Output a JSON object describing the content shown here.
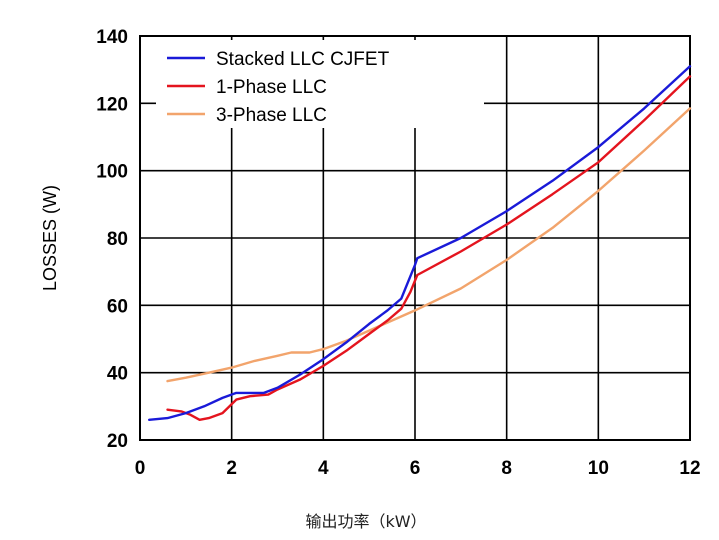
{
  "chart_data": {
    "type": "line",
    "title": "",
    "xlabel": "输出功率（kW）",
    "ylabel": "LOSSES (W)",
    "xlim": [
      0,
      12
    ],
    "ylim": [
      20,
      140
    ],
    "xticks": [
      "0",
      "2",
      "4",
      "6",
      "8",
      "10",
      "12"
    ],
    "yticks": [
      "20",
      "40",
      "60",
      "80",
      "100",
      "120",
      "140"
    ],
    "grid": true,
    "legend_position": "top-left",
    "series": [
      {
        "name": "Stacked LLC CJFET",
        "color": "#1a1ad8",
        "x": [
          0.2,
          0.6,
          1.0,
          1.4,
          1.8,
          2.1,
          2.4,
          2.7,
          3.0,
          3.5,
          4.0,
          4.5,
          5.0,
          5.4,
          5.7,
          5.85,
          6.0,
          6.05,
          7.0,
          8.0,
          9.0,
          10.0,
          11.0,
          12.0
        ],
        "values": [
          26,
          26.5,
          28,
          30,
          32.5,
          34,
          34,
          34,
          35.5,
          39.5,
          44,
          49,
          54.5,
          58.5,
          62,
          67,
          72,
          74,
          80,
          88,
          97,
          107,
          118.5,
          131
        ]
      },
      {
        "name": "1-Phase LLC",
        "color": "#e4141e",
        "x": [
          0.6,
          0.9,
          1.1,
          1.3,
          1.5,
          1.8,
          2.1,
          2.4,
          2.8,
          3.0,
          3.5,
          4.0,
          4.5,
          5.0,
          5.4,
          5.7,
          5.9,
          6.05,
          7.0,
          8.0,
          9.0,
          10.0,
          11.0,
          12.0
        ],
        "values": [
          29,
          28.5,
          27.5,
          26,
          26.5,
          28,
          32,
          33,
          33.5,
          35,
          38,
          42,
          46.5,
          51.5,
          55.5,
          59,
          64,
          69,
          76,
          84,
          93,
          102.5,
          115,
          128
        ]
      },
      {
        "name": "3-Phase LLC",
        "color": "#f2a46c",
        "x": [
          0.6,
          1.0,
          1.5,
          2.0,
          2.5,
          3.0,
          3.3,
          3.7,
          4.0,
          4.5,
          5.0,
          5.5,
          6.0,
          7.0,
          8.0,
          9.0,
          10.0,
          11.0,
          12.0
        ],
        "values": [
          37.5,
          38.5,
          40,
          41.5,
          43.5,
          45,
          46,
          46,
          47,
          49.5,
          52.5,
          55.5,
          58.5,
          65,
          73.5,
          83,
          94,
          106,
          118.5
        ]
      }
    ]
  }
}
